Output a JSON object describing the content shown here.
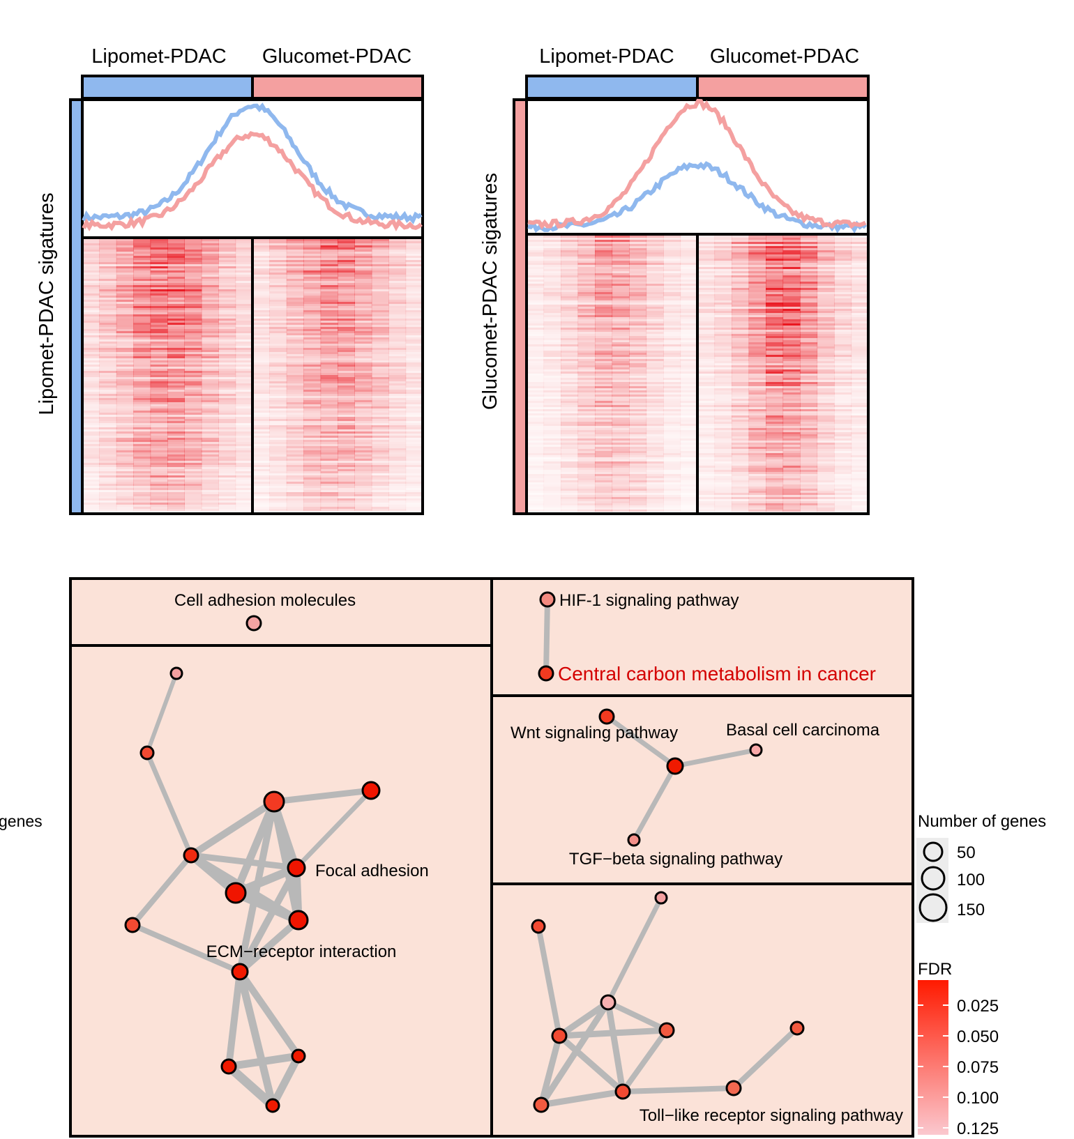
{
  "heatmaps": [
    {
      "col_labels": [
        "Lipomet-PDAC",
        "Glucomet-PDAC"
      ],
      "row_label": "Lipomet-PDAC sigatures",
      "row_color": "#8fb8ee",
      "profile_lipomet_peak": 1.0,
      "profile_glucomet_peak": 0.78
    },
    {
      "col_labels": [
        "Lipomet-PDAC",
        "Glucomet-PDAC"
      ],
      "row_label": "Glucomet-PDAC sigatures",
      "row_color": "#f4a0a0",
      "profile_lipomet_peak": 0.52,
      "profile_glucomet_peak": 1.0
    }
  ],
  "colors": {
    "lipomet": "#8fb8ee",
    "glucomet": "#f4a0a0",
    "panel_bg": "#fbe2d8",
    "edge": "#b8b8b8"
  },
  "network": {
    "labels": {
      "cam": "Cell adhesion molecules",
      "hif": "HIF-1 signaling pathway",
      "ccm": "Central carbon metabolism in cancer",
      "wnt": "Wnt signaling pathway",
      "bcc": "Basal cell carcinoma",
      "tgf": "TGF−beta signaling pathway",
      "focal": "Focal adhesion",
      "ecm": "ECM−receptor interaction",
      "toll": "Toll−like receptor signaling pathway"
    },
    "highlight_color": "#d40000"
  },
  "legend": {
    "size_title": "Number of genes",
    "size_values": [
      "50",
      "100",
      "150"
    ],
    "color_title": "FDR",
    "color_ticks": [
      "0.025",
      "0.050",
      "0.075",
      "0.100",
      "0.125"
    ],
    "color_high": "#ff1a00",
    "color_low": "#fbc8cf"
  },
  "cut_off_label": "genes"
}
